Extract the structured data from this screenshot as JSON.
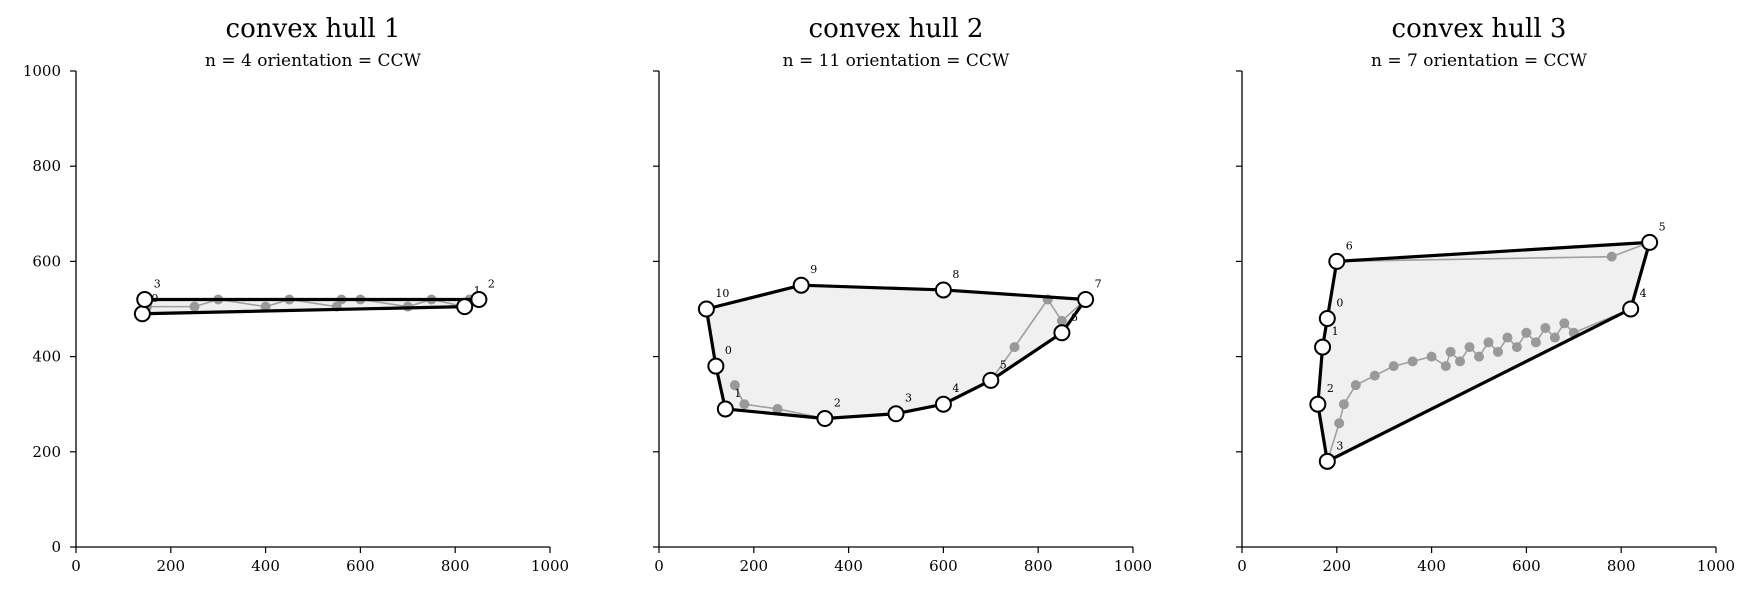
{
  "chart_data": [
    {
      "type": "scatter",
      "title": "convex hull 1",
      "subtitle": "n = 4   orientation = CCW",
      "xlim": [
        0,
        1000
      ],
      "ylim": [
        0,
        1000
      ],
      "xticks": [
        "0",
        "200",
        "400",
        "600",
        "800",
        "1000"
      ],
      "yticks": [
        "0",
        "200",
        "400",
        "600",
        "800",
        "1000"
      ],
      "show_y_ticklabels": true,
      "raw_path": [
        [
          150,
          505
        ],
        [
          250,
          505
        ],
        [
          300,
          520
        ],
        [
          400,
          505
        ],
        [
          450,
          520
        ],
        [
          550,
          505
        ],
        [
          560,
          520
        ],
        [
          600,
          520
        ],
        [
          700,
          505
        ],
        [
          750,
          520
        ],
        [
          820,
          505
        ],
        [
          850,
          520
        ],
        [
          830,
          520
        ],
        [
          145,
          520
        ]
      ],
      "hull": [
        [
          140,
          490
        ],
        [
          820,
          505
        ],
        [
          850,
          520
        ],
        [
          145,
          520
        ]
      ],
      "hull_labels": [
        "0",
        "1",
        "2",
        "3"
      ]
    },
    {
      "type": "scatter",
      "title": "convex hull 2",
      "subtitle": "n = 11   orientation = CCW",
      "xlim": [
        0,
        1000
      ],
      "ylim": [
        0,
        1000
      ],
      "xticks": [
        "0",
        "200",
        "400",
        "600",
        "800",
        "1000"
      ],
      "yticks": [
        "0",
        "200",
        "400",
        "600",
        "800",
        "1000"
      ],
      "show_y_ticklabels": false,
      "raw_path": [
        [
          160,
          340
        ],
        [
          180,
          300
        ],
        [
          250,
          290
        ],
        [
          350,
          270
        ],
        [
          500,
          280
        ],
        [
          600,
          300
        ],
        [
          700,
          350
        ],
        [
          750,
          420
        ],
        [
          820,
          520
        ],
        [
          850,
          475
        ],
        [
          900,
          520
        ]
      ],
      "hull": [
        [
          120,
          380
        ],
        [
          140,
          290
        ],
        [
          350,
          270
        ],
        [
          500,
          280
        ],
        [
          600,
          300
        ],
        [
          700,
          350
        ],
        [
          850,
          450
        ],
        [
          900,
          520
        ],
        [
          600,
          540
        ],
        [
          300,
          550
        ],
        [
          100,
          500
        ]
      ],
      "hull_labels": [
        "0",
        "1",
        "2",
        "3",
        "4",
        "5",
        "6",
        "7",
        "8",
        "9",
        "10"
      ]
    },
    {
      "type": "scatter",
      "title": "convex hull 3",
      "subtitle": "n = 7   orientation = CCW",
      "xlim": [
        0,
        1000
      ],
      "ylim": [
        0,
        1000
      ],
      "xticks": [
        "0",
        "200",
        "400",
        "600",
        "800",
        "1000"
      ],
      "yticks": [
        "0",
        "200",
        "400",
        "600",
        "800",
        "1000"
      ],
      "show_y_ticklabels": false,
      "raw_path": [
        [
          180,
          180
        ],
        [
          205,
          260
        ],
        [
          215,
          300
        ],
        [
          240,
          340
        ],
        [
          280,
          360
        ],
        [
          320,
          380
        ],
        [
          360,
          390
        ],
        [
          400,
          400
        ],
        [
          430,
          380
        ],
        [
          440,
          410
        ],
        [
          460,
          390
        ],
        [
          480,
          420
        ],
        [
          500,
          400
        ],
        [
          520,
          430
        ],
        [
          540,
          410
        ],
        [
          560,
          440
        ],
        [
          580,
          420
        ],
        [
          600,
          450
        ],
        [
          620,
          430
        ],
        [
          640,
          460
        ],
        [
          660,
          440
        ],
        [
          680,
          470
        ],
        [
          700,
          450
        ],
        [
          820,
          500
        ],
        [
          860,
          640
        ],
        [
          780,
          610
        ],
        [
          200,
          600
        ]
      ],
      "hull": [
        [
          180,
          480
        ],
        [
          170,
          420
        ],
        [
          160,
          300
        ],
        [
          180,
          180
        ],
        [
          820,
          500
        ],
        [
          860,
          640
        ],
        [
          200,
          600
        ]
      ],
      "hull_labels": [
        "0",
        "1",
        "2",
        "3",
        "4",
        "5",
        "6"
      ]
    }
  ]
}
